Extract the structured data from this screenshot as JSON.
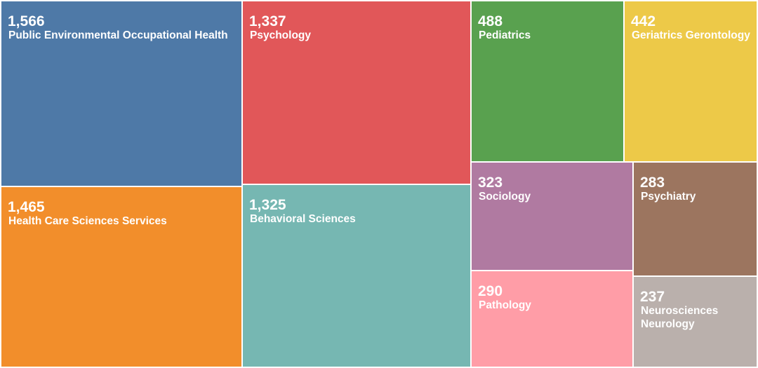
{
  "chart_data": {
    "type": "treemap",
    "items": [
      {
        "label": "Public Environmental Occupational Health",
        "value": 1566,
        "display": "1,566",
        "color": "#4e79a7"
      },
      {
        "label": "Health Care Sciences Services",
        "value": 1465,
        "display": "1,465",
        "color": "#f28e2b"
      },
      {
        "label": "Psychology",
        "value": 1337,
        "display": "1,337",
        "color": "#e15759"
      },
      {
        "label": "Behavioral Sciences",
        "value": 1325,
        "display": "1,325",
        "color": "#76b7b2"
      },
      {
        "label": "Pediatrics",
        "value": 488,
        "display": "488",
        "color": "#59a14f"
      },
      {
        "label": "Geriatrics Gerontology",
        "value": 442,
        "display": "442",
        "color": "#edc948"
      },
      {
        "label": "Sociology",
        "value": 323,
        "display": "323",
        "color": "#b07aa1"
      },
      {
        "label": "Psychiatry",
        "value": 283,
        "display": "283",
        "color": "#9c755f"
      },
      {
        "label": "Pathology",
        "value": 290,
        "display": "290",
        "color": "#ff9da7"
      },
      {
        "label": "Neurosciences Neurology",
        "value": 237,
        "display": "237",
        "color": "#bab0ac"
      }
    ]
  }
}
